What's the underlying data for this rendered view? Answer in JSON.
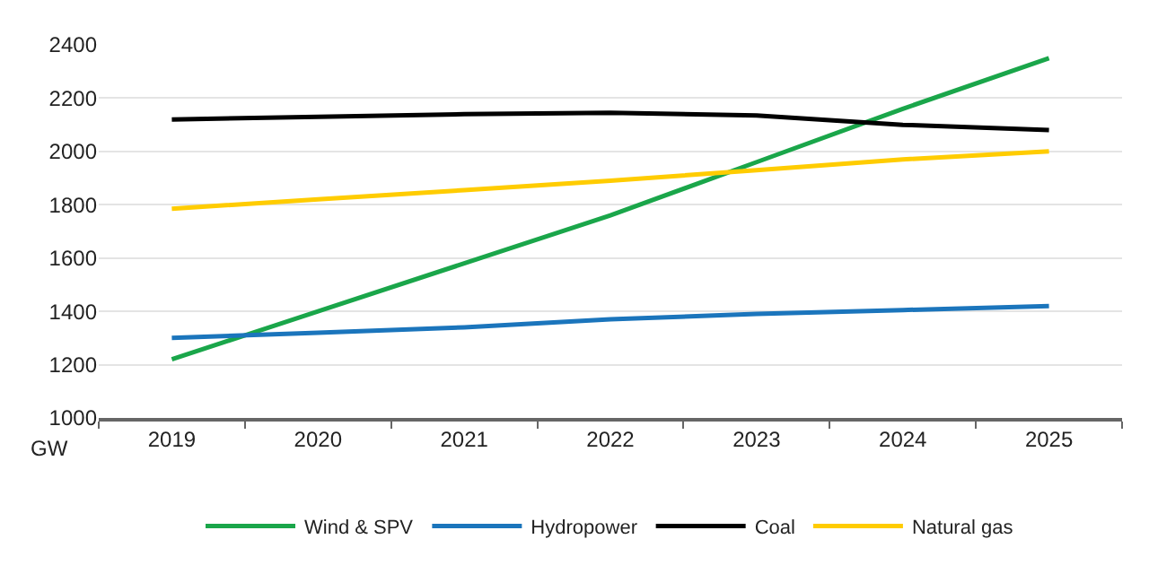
{
  "chart_data": {
    "type": "line",
    "ylabel": "GW",
    "categories": [
      "2019",
      "2020",
      "2021",
      "2022",
      "2023",
      "2024",
      "2025"
    ],
    "series": [
      {
        "name": "Wind & SPV",
        "color": "#1aa64a",
        "values": [
          1220,
          1400,
          1580,
          1760,
          1960,
          2160,
          2350
        ]
      },
      {
        "name": "Hydropower",
        "color": "#1b75bc",
        "values": [
          1300,
          1320,
          1340,
          1370,
          1390,
          1405,
          1420
        ]
      },
      {
        "name": "Coal",
        "color": "#000000",
        "values": [
          2120,
          2130,
          2140,
          2145,
          2135,
          2100,
          2080
        ]
      },
      {
        "name": "Natural gas",
        "color": "#ffcc00",
        "values": [
          1785,
          1820,
          1855,
          1890,
          1930,
          1970,
          2000
        ]
      }
    ],
    "ylim": [
      1000,
      2400
    ],
    "yticks": [
      1000,
      1200,
      1400,
      1600,
      1800,
      2000,
      2200,
      2400
    ],
    "grid": "y",
    "legend": "bottom",
    "marker": "none",
    "line_style": "solid"
  }
}
